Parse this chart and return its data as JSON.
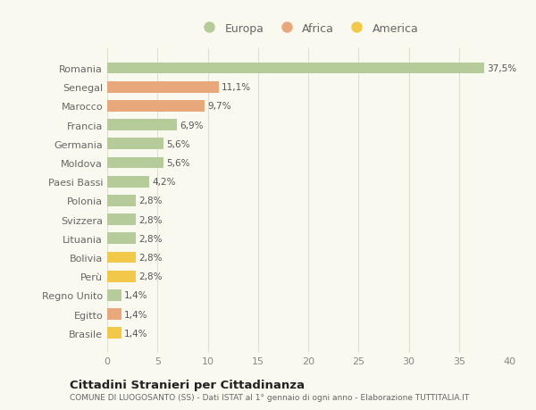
{
  "categories": [
    "Romania",
    "Senegal",
    "Marocco",
    "Francia",
    "Germania",
    "Moldova",
    "Paesi Bassi",
    "Polonia",
    "Svizzera",
    "Lituania",
    "Bolivia",
    "Perù",
    "Regno Unito",
    "Egitto",
    "Brasile"
  ],
  "values": [
    37.5,
    11.1,
    9.7,
    6.9,
    5.6,
    5.6,
    4.2,
    2.8,
    2.8,
    2.8,
    2.8,
    2.8,
    1.4,
    1.4,
    1.4
  ],
  "labels": [
    "37,5%",
    "11,1%",
    "9,7%",
    "6,9%",
    "5,6%",
    "5,6%",
    "4,2%",
    "2,8%",
    "2,8%",
    "2,8%",
    "2,8%",
    "2,8%",
    "1,4%",
    "1,4%",
    "1,4%"
  ],
  "continents": [
    "Europa",
    "Africa",
    "Africa",
    "Europa",
    "Europa",
    "Europa",
    "Europa",
    "Europa",
    "Europa",
    "Europa",
    "America",
    "America",
    "Europa",
    "Africa",
    "America"
  ],
  "colors": {
    "Europa": "#b5cc9a",
    "Africa": "#e8a87c",
    "America": "#f2c84b"
  },
  "xlim": [
    0,
    40
  ],
  "xticks": [
    0,
    5,
    10,
    15,
    20,
    25,
    30,
    35,
    40
  ],
  "title": "Cittadini Stranieri per Cittadinanza",
  "subtitle": "COMUNE DI LUOGOSANTO (SS) - Dati ISTAT al 1° gennaio di ogni anno - Elaborazione TUTTITALIA.IT",
  "background_color": "#f9f9ef",
  "grid_color": "#e0e0d0",
  "bar_height": 0.6,
  "legend_items": [
    "Europa",
    "Africa",
    "America"
  ]
}
